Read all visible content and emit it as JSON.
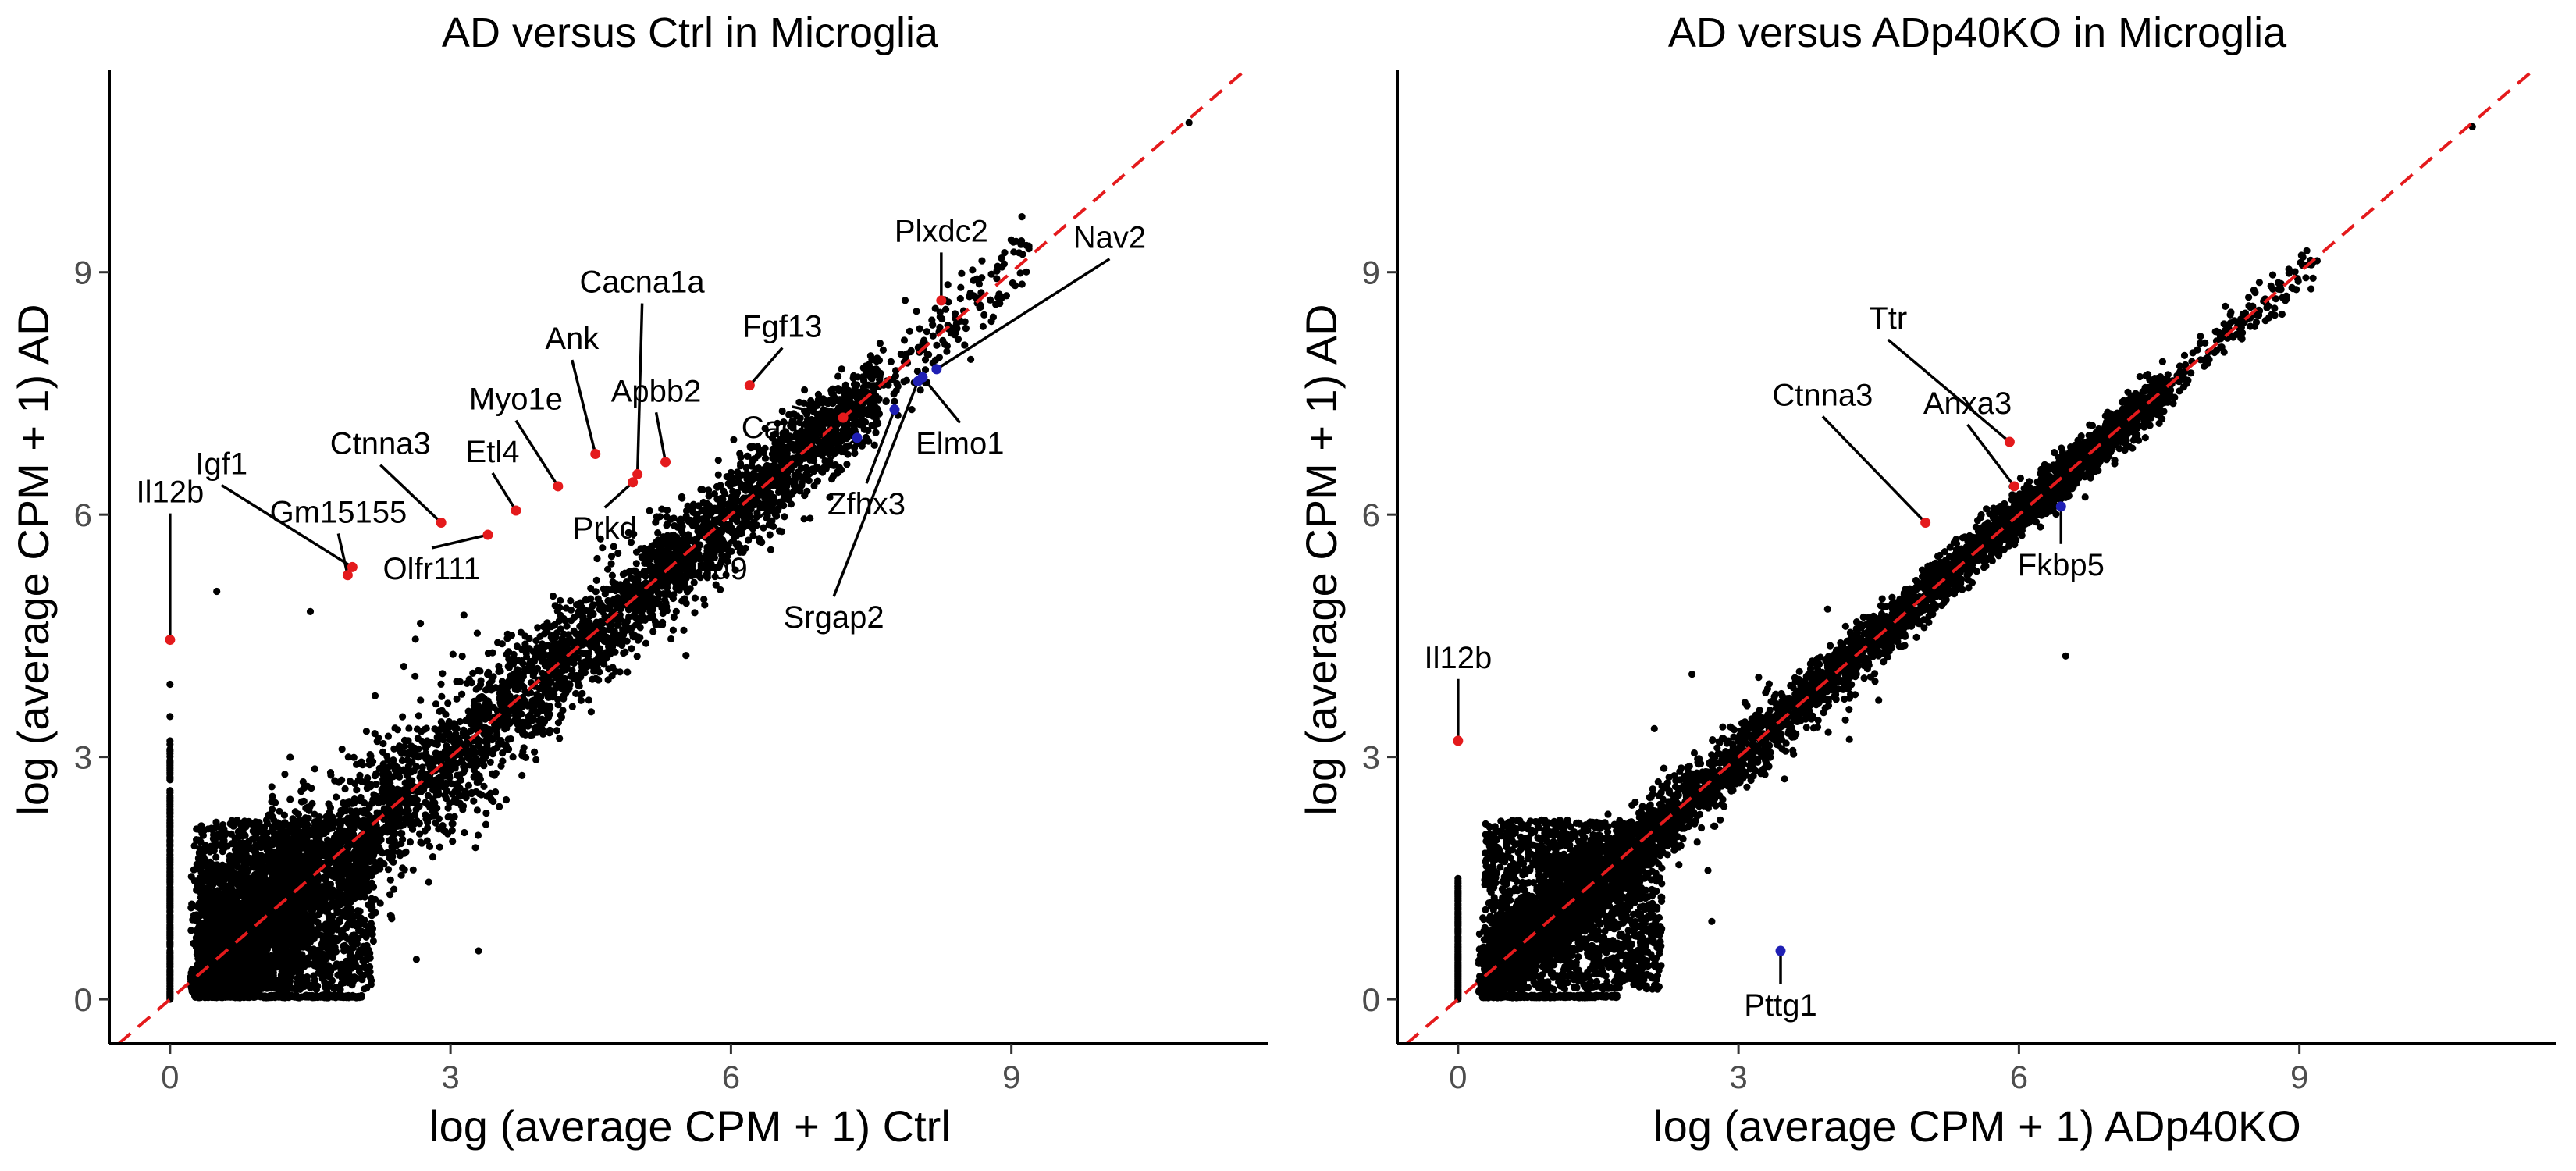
{
  "chart_data": [
    {
      "type": "scatter",
      "title": "AD versus Ctrl in Microglia",
      "xlabel": "log (average CPM + 1) Ctrl",
      "ylabel": "log (average CPM + 1) AD",
      "xlim": [
        -0.65,
        11.75
      ],
      "ylim": [
        -0.55,
        11.5
      ],
      "xticks": [
        0,
        3,
        6,
        9
      ],
      "yticks": [
        0,
        3,
        6,
        9
      ],
      "grid": false,
      "reference_line": {
        "type": "diagonal",
        "slope": 1,
        "intercept": 0,
        "color": "#e41a1c",
        "dash": "dashed"
      },
      "bulk_color": "#000000",
      "up_color": "#e41a1c",
      "down_color": "#1f1fb4",
      "outliers": [
        [
          10.9,
          10.85
        ],
        [
          1.5,
          4.8
        ],
        [
          0.5,
          5.05
        ],
        [
          3.3,
          0.6
        ]
      ],
      "highlighted": [
        {
          "label": "Plxdc2",
          "x": 8.25,
          "y": 8.65,
          "dir": "up",
          "lx": 8.25,
          "ly": 9.38
        },
        {
          "label": "Nav2",
          "x": 8.2,
          "y": 7.8,
          "dir": "down",
          "lx": 10.05,
          "ly": 9.3
        },
        {
          "label": "Cacna1a",
          "x": 5.0,
          "y": 6.5,
          "dir": "up",
          "lx": 5.05,
          "ly": 8.75
        },
        {
          "label": "Ank",
          "x": 4.55,
          "y": 6.75,
          "dir": "up",
          "lx": 4.3,
          "ly": 8.05
        },
        {
          "label": "Fgf13",
          "x": 6.2,
          "y": 7.6,
          "dir": "up",
          "lx": 6.55,
          "ly": 8.2
        },
        {
          "label": "Apbb2",
          "x": 5.3,
          "y": 6.65,
          "dir": "up",
          "lx": 5.2,
          "ly": 7.4
        },
        {
          "label": "Myo1e",
          "x": 4.15,
          "y": 6.35,
          "dir": "up",
          "lx": 3.7,
          "ly": 7.3
        },
        {
          "label": "Cadm1",
          "x": 7.2,
          "y": 7.2,
          "dir": "up",
          "lx": 6.65,
          "ly": 6.95
        },
        {
          "label": "Etl4",
          "x": 3.7,
          "y": 6.05,
          "dir": "up",
          "lx": 3.45,
          "ly": 6.65
        },
        {
          "label": "Ctnna3",
          "x": 2.9,
          "y": 5.9,
          "dir": "up",
          "lx": 2.25,
          "ly": 6.75
        },
        {
          "label": "Igf1",
          "x": 1.95,
          "y": 5.35,
          "dir": "up",
          "lx": 0.55,
          "ly": 6.5
        },
        {
          "label": "Gm15155",
          "x": 1.9,
          "y": 5.25,
          "dir": "up",
          "lx": 1.8,
          "ly": 5.9
        },
        {
          "label": "Il12b",
          "x": 0.0,
          "y": 4.45,
          "dir": "up",
          "lx": 0.0,
          "ly": 6.15
        },
        {
          "label": "Olfr111",
          "x": 3.4,
          "y": 5.75,
          "dir": "up",
          "lx": 2.8,
          "ly": 5.2
        },
        {
          "label": "Prkd",
          "x": 4.95,
          "y": 6.4,
          "dir": "up",
          "lx": 4.65,
          "ly": 5.7
        },
        {
          "label": "Elmo1",
          "x": 8.05,
          "y": 7.7,
          "dir": "down",
          "lx": 8.45,
          "ly": 6.75
        },
        {
          "label": "Zfhx3",
          "x": 7.75,
          "y": 7.3,
          "dir": "down",
          "lx": 7.45,
          "ly": 6.0
        },
        {
          "label": "nd9",
          "x": 7.35,
          "y": 6.95,
          "dir": "down",
          "lx": 5.9,
          "ly": 5.2
        },
        {
          "label": "Srgap2",
          "x": 8.0,
          "y": 7.65,
          "dir": "down",
          "lx": 7.1,
          "ly": 4.6
        }
      ]
    },
    {
      "type": "scatter",
      "title": "AD versus ADp40KO in Microglia",
      "xlabel": "log (average CPM + 1) ADp40KO",
      "ylabel": "log (average CPM + 1) AD",
      "xlim": [
        -0.65,
        11.75
      ],
      "ylim": [
        -0.55,
        11.5
      ],
      "xticks": [
        0,
        3,
        6,
        9
      ],
      "yticks": [
        0,
        3,
        6,
        9
      ],
      "grid": false,
      "reference_line": {
        "type": "diagonal",
        "slope": 1,
        "intercept": 0,
        "color": "#e41a1c",
        "dash": "dashed"
      },
      "bulk_color": "#000000",
      "up_color": "#e41a1c",
      "down_color": "#1f1fb4",
      "outliers": [
        [
          10.85,
          10.8
        ],
        [
          8.85,
          8.65
        ],
        [
          2.1,
          3.35
        ],
        [
          6.5,
          4.25
        ]
      ],
      "highlighted": [
        {
          "label": "Ttr",
          "x": 5.9,
          "y": 6.9,
          "dir": "up",
          "lx": 4.6,
          "ly": 8.3
        },
        {
          "label": "Ctnna3",
          "x": 5.0,
          "y": 5.9,
          "dir": "up",
          "lx": 3.9,
          "ly": 7.35
        },
        {
          "label": "Anxa3",
          "x": 5.95,
          "y": 6.35,
          "dir": "up",
          "lx": 5.45,
          "ly": 7.25
        },
        {
          "label": "Fkbp5",
          "x": 6.45,
          "y": 6.1,
          "dir": "down",
          "lx": 6.45,
          "ly": 5.25
        },
        {
          "label": "Il12b",
          "x": 0.0,
          "y": 3.2,
          "dir": "up",
          "lx": 0.0,
          "ly": 4.1
        },
        {
          "label": "Pttg1",
          "x": 3.45,
          "y": 0.6,
          "dir": "down",
          "lx": 3.45,
          "ly": -0.2
        }
      ]
    }
  ]
}
